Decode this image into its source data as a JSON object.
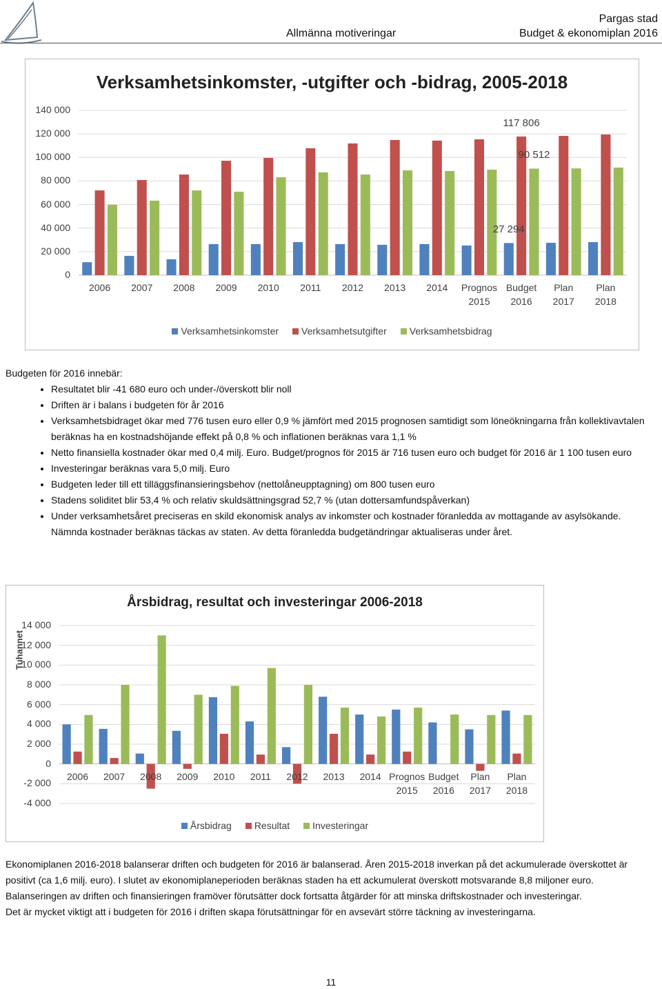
{
  "header": {
    "org": "Pargas stad",
    "section": "Allmänna motiveringar",
    "doc": "Budget & ekonomiplan 2016"
  },
  "chart_data": [
    {
      "type": "bar",
      "title": "Verksamhetsinkomster, -utgifter och -bidrag, 2005-2018",
      "categories": [
        "2006",
        "2007",
        "2008",
        "2009",
        "2010",
        "2011",
        "2012",
        "2013",
        "2014",
        "Prognos 2015",
        "Budget 2016",
        "Plan 2017",
        "Plan 2018"
      ],
      "series": [
        {
          "name": "Verksamhetsinkomster",
          "color": "#4f81bd",
          "values": [
            11000,
            16400,
            13500,
            26400,
            26400,
            28100,
            26400,
            25800,
            26400,
            25200,
            27294,
            27500,
            28100
          ],
          "value_labels": [
            null,
            null,
            null,
            null,
            null,
            null,
            null,
            null,
            null,
            null,
            "27 294",
            null,
            null
          ]
        },
        {
          "name": "Verksamhetsutgifter",
          "color": "#c0504d",
          "values": [
            72000,
            80800,
            85500,
            97200,
            99600,
            107800,
            111900,
            114800,
            114300,
            115400,
            117806,
            118300,
            119500
          ],
          "value_labels": [
            null,
            null,
            null,
            null,
            null,
            null,
            null,
            null,
            null,
            null,
            "117 806",
            null,
            null
          ]
        },
        {
          "name": "Verksamhetsbidrag",
          "color": "#9bbb59",
          "values": [
            59800,
            63300,
            72000,
            70900,
            83200,
            87300,
            85500,
            89000,
            88500,
            89600,
            90512,
            90700,
            91400
          ],
          "value_labels": [
            null,
            null,
            null,
            null,
            null,
            null,
            null,
            null,
            null,
            null,
            "90 512",
            null,
            null
          ]
        }
      ],
      "ylim": [
        0,
        140000
      ],
      "yticks": [
        0,
        {
          "value": 20000,
          "label": "20 000"
        },
        {
          "value": 40000,
          "label": "40 000"
        },
        {
          "value": 60000,
          "label": "60 000"
        },
        {
          "value": 80000,
          "label": "80 000"
        },
        {
          "value": 100000,
          "label": "100 000"
        },
        {
          "value": 120000,
          "label": "120 000"
        },
        {
          "value": 140000,
          "label": "140 000"
        }
      ],
      "grid": true,
      "legend": "bottom"
    },
    {
      "type": "bar",
      "title": "Årsbidrag, resultat och investeringar 2006-2018",
      "ylabel": "Tuhannet",
      "categories": [
        "2006",
        "2007",
        "2008",
        "2009",
        "2010",
        "2011",
        "2012",
        "2013",
        "2014",
        "Prognos 2015",
        "Budget 2016",
        "Plan 2017",
        "Plan 2018"
      ],
      "series": [
        {
          "name": "Årsbidrag",
          "color": "#4f81bd",
          "values": [
            4000,
            3550,
            1050,
            3350,
            6750,
            4300,
            1700,
            6800,
            5000,
            5500,
            4200,
            3500,
            5400
          ]
        },
        {
          "name": "Resultat",
          "color": "#c0504d",
          "values": [
            1250,
            600,
            -2500,
            -500,
            3050,
            950,
            -2000,
            3050,
            950,
            1250,
            0,
            -700,
            1050
          ]
        },
        {
          "name": "Investeringar",
          "color": "#9bbb59",
          "values": [
            4950,
            8000,
            13000,
            7000,
            7900,
            9700,
            8000,
            5700,
            4800,
            5700,
            5000,
            4950,
            4950
          ]
        }
      ],
      "ylim": [
        -4000,
        14000
      ],
      "yticks": [
        {
          "value": -4000,
          "label": "-4 000"
        },
        {
          "value": -2000,
          "label": "-2 000"
        },
        0,
        {
          "value": 2000,
          "label": "2 000"
        },
        {
          "value": 4000,
          "label": "4 000"
        },
        {
          "value": 6000,
          "label": "6 000"
        },
        {
          "value": 8000,
          "label": "8 000"
        },
        {
          "value": 10000,
          "label": "10 000"
        },
        {
          "value": 12000,
          "label": "12 000"
        },
        {
          "value": 14000,
          "label": "14 000"
        }
      ],
      "grid": true,
      "legend": "bottom"
    }
  ],
  "intro": "Budgeten för 2016 innebär:",
  "bullets": [
    "Resultatet blir -41 680 euro och under-/överskott blir noll",
    "Driften är i balans i budgeten för år 2016",
    "Verksamhetsbidraget ökar med 776 tusen euro eller 0,9 % jämfört med 2015 prognosen samtidigt som löneökningarna från kollektivavtalen beräknas ha en kostnadshöjande effekt på 0,8 % och inflationen beräknas vara 1,1 %",
    "Netto finansiella kostnader ökar med 0,4 milj. Euro. Budget/prognos för 2015 är 716 tusen euro och budget för 2016 är 1 100 tusen euro",
    "Investeringar beräknas vara 5,0 milj. Euro",
    "Budgeten leder till ett tilläggsfinansieringsbehov (nettolåneupptagning) om 800 tusen euro",
    "Stadens soliditet blir 53,4 % och relativ skuldsättningsgrad 52,7 % (utan dottersamfundspåverkan)",
    "Under verksamhetsåret preciseras en skild ekonomisk analys av inkomster och kostnader föranledda av mottagande av asylsökande. Nämnda kostnader beräknas täckas av staten. Av detta föranledda budgetändringar aktualiseras under året."
  ],
  "paragraphs": [
    "Ekonomiplanen 2016-2018 balanserar driften och budgeten för 2016 är balanserad. Åren 2015-2018 inverkan på det ackumulerade överskottet är positivt (ca 1,6 milj. euro). I slutet av ekonomiplaneperioden beräknas staden ha ett ackumulerat överskott motsvarande 8,8 miljoner euro. Balanseringen av driften och finansieringen framöver förutsätter dock fortsatta åtgärder för att minska driftskostnader och investeringar.",
    "Det är mycket viktigt att i budgeten för 2016 i driften skapa förutsättningar för en avsevärt större täckning av investeringarna."
  ],
  "page_number": 11
}
